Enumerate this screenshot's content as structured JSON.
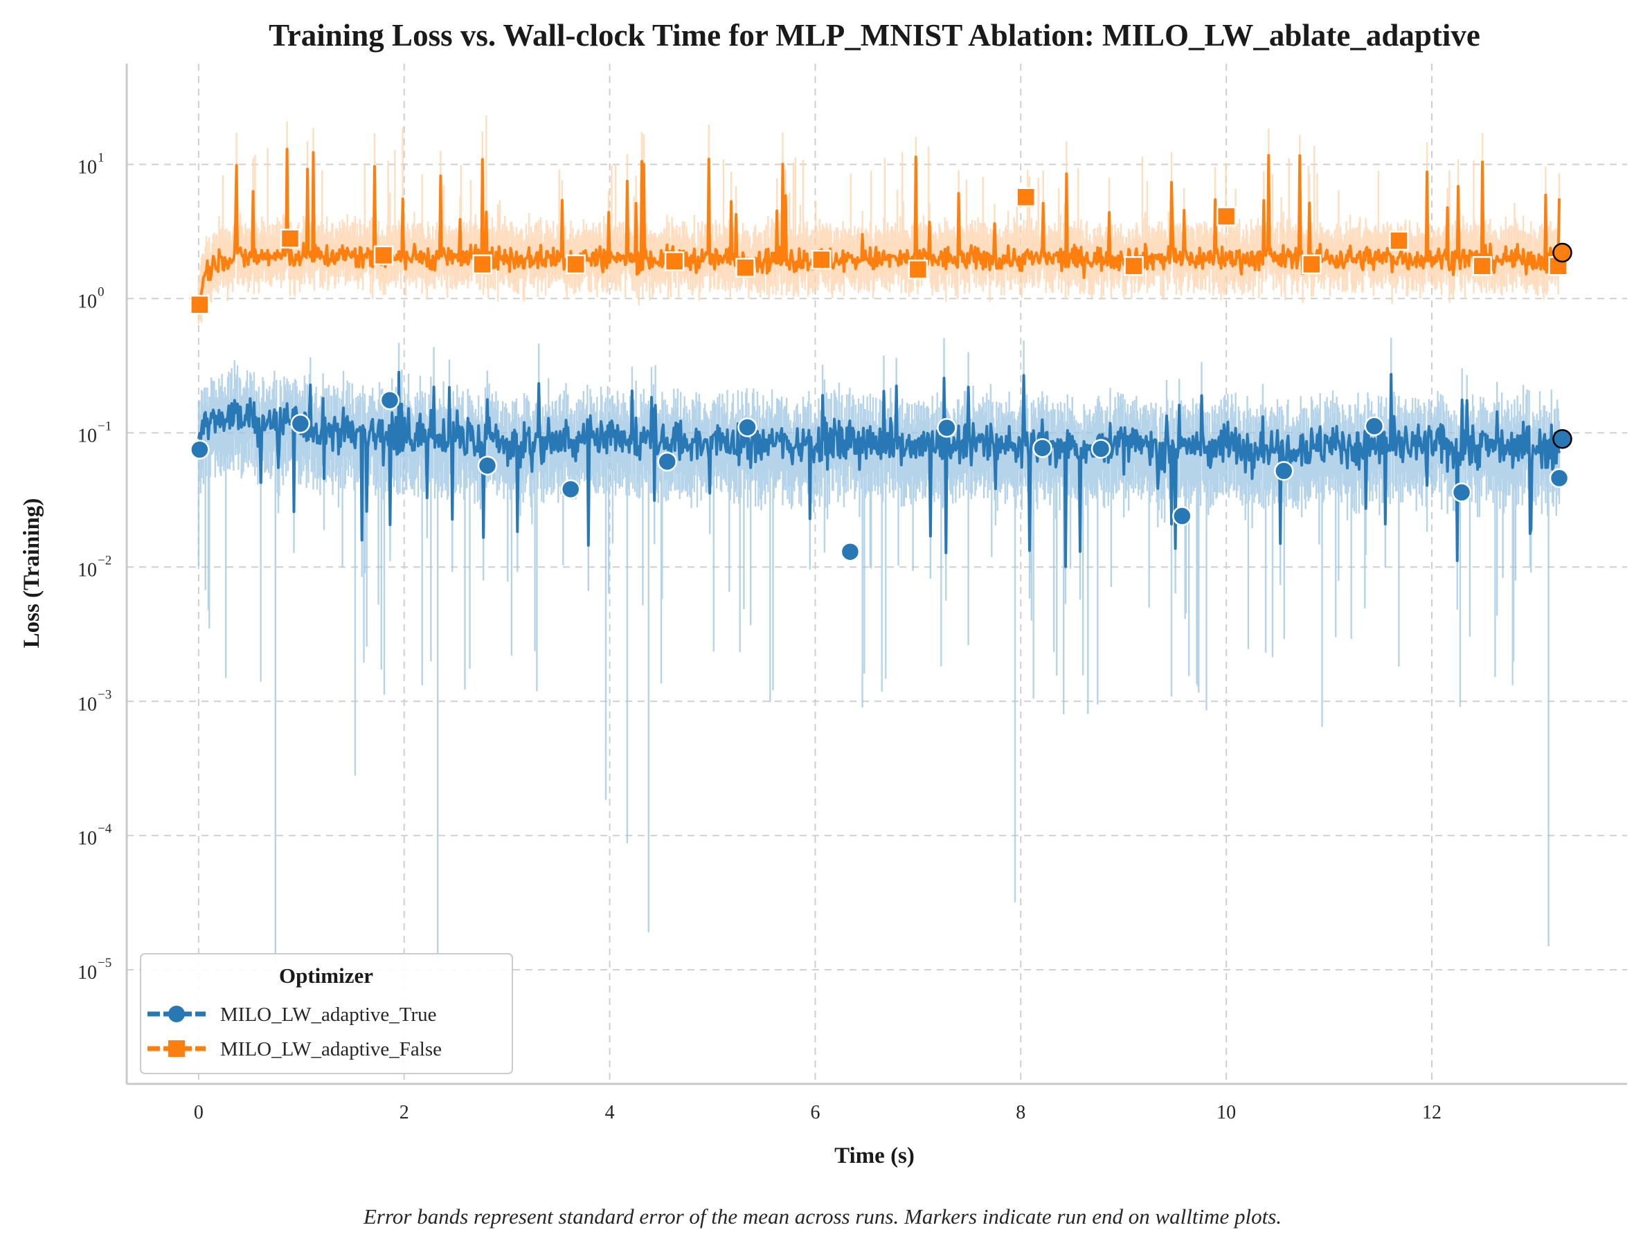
{
  "chart_data": {
    "type": "line",
    "title": "Training Loss vs. Wall-clock Time for MLP_MNIST Ablation: MILO_LW_ablate_adaptive",
    "xlabel": "Time (s)",
    "ylabel": "Loss (Training)",
    "xlim": [
      -0.7,
      13.9
    ],
    "ylim_log10": [
      -5.85,
      1.75
    ],
    "yscale": "log",
    "grid": true,
    "x_ticks": [
      0,
      2,
      4,
      6,
      8,
      10,
      12
    ],
    "x_tick_labels": [
      "0",
      "2",
      "4",
      "6",
      "8",
      "10",
      "12"
    ],
    "y_ticks_exponent": [
      -5,
      -4,
      -3,
      -2,
      -1,
      0,
      1
    ],
    "y_tick_labels": [
      "10",
      "10",
      "10",
      "10",
      "10",
      "10",
      "10"
    ],
    "y_tick_exponent_labels": [
      "−5",
      "−4",
      "−3",
      "−2",
      "−1",
      "0",
      "1"
    ],
    "legend": {
      "title": "Optimizer",
      "placement": "lower-left",
      "entries": [
        "MILO_LW_adaptive_True",
        "MILO_LW_adaptive_False"
      ]
    },
    "error_band_note": "Error bands represent standard error of the mean across runs. Markers indicate run end on walltime plots.",
    "series": [
      {
        "name": "MILO_LW_adaptive_True",
        "color": "#2878b5",
        "band_color": "#9ec5e2",
        "marker": "circle",
        "trend": {
          "x": [
            0,
            0.05,
            0.3,
            1,
            3,
            6,
            9,
            12,
            13.25
          ],
          "y": [
            0.075,
            0.12,
            0.13,
            0.11,
            0.085,
            0.085,
            0.08,
            0.08,
            0.08
          ]
        },
        "markers": {
          "x": [
            0.01,
            0.99,
            1.86,
            2.81,
            3.62,
            4.56,
            5.34,
            6.34,
            7.28,
            8.21,
            8.78,
            9.57,
            10.56,
            11.44,
            12.29,
            13.24
          ],
          "y": [
            0.075,
            0.117,
            0.175,
            0.057,
            0.038,
            0.061,
            0.11,
            0.013,
            0.109,
            0.077,
            0.076,
            0.024,
            0.052,
            0.112,
            0.036,
            0.046
          ]
        },
        "run_end": {
          "x": 13.27,
          "y": 0.09
        }
      },
      {
        "name": "MILO_LW_adaptive_False",
        "color": "#ff7f0e",
        "band_color": "#ffd2a8",
        "marker": "square",
        "trend": {
          "x": [
            0,
            0.05,
            0.2,
            1,
            3,
            6,
            9,
            12,
            13.25
          ],
          "y": [
            0.85,
            1.5,
            2.0,
            2.1,
            2.0,
            1.95,
            2.0,
            2.0,
            1.95
          ]
        },
        "markers": {
          "x": [
            0.01,
            0.89,
            1.8,
            2.76,
            3.67,
            4.63,
            5.32,
            6.06,
            7.0,
            8.05,
            9.1,
            10.0,
            10.83,
            11.68,
            12.49,
            13.23
          ],
          "y": [
            0.9,
            2.8,
            2.1,
            1.8,
            1.8,
            1.9,
            1.7,
            1.95,
            1.65,
            5.7,
            1.75,
            4.1,
            1.8,
            2.7,
            1.75,
            1.75
          ]
        },
        "run_end": {
          "x": 13.27,
          "y": 2.2
        }
      }
    ]
  }
}
